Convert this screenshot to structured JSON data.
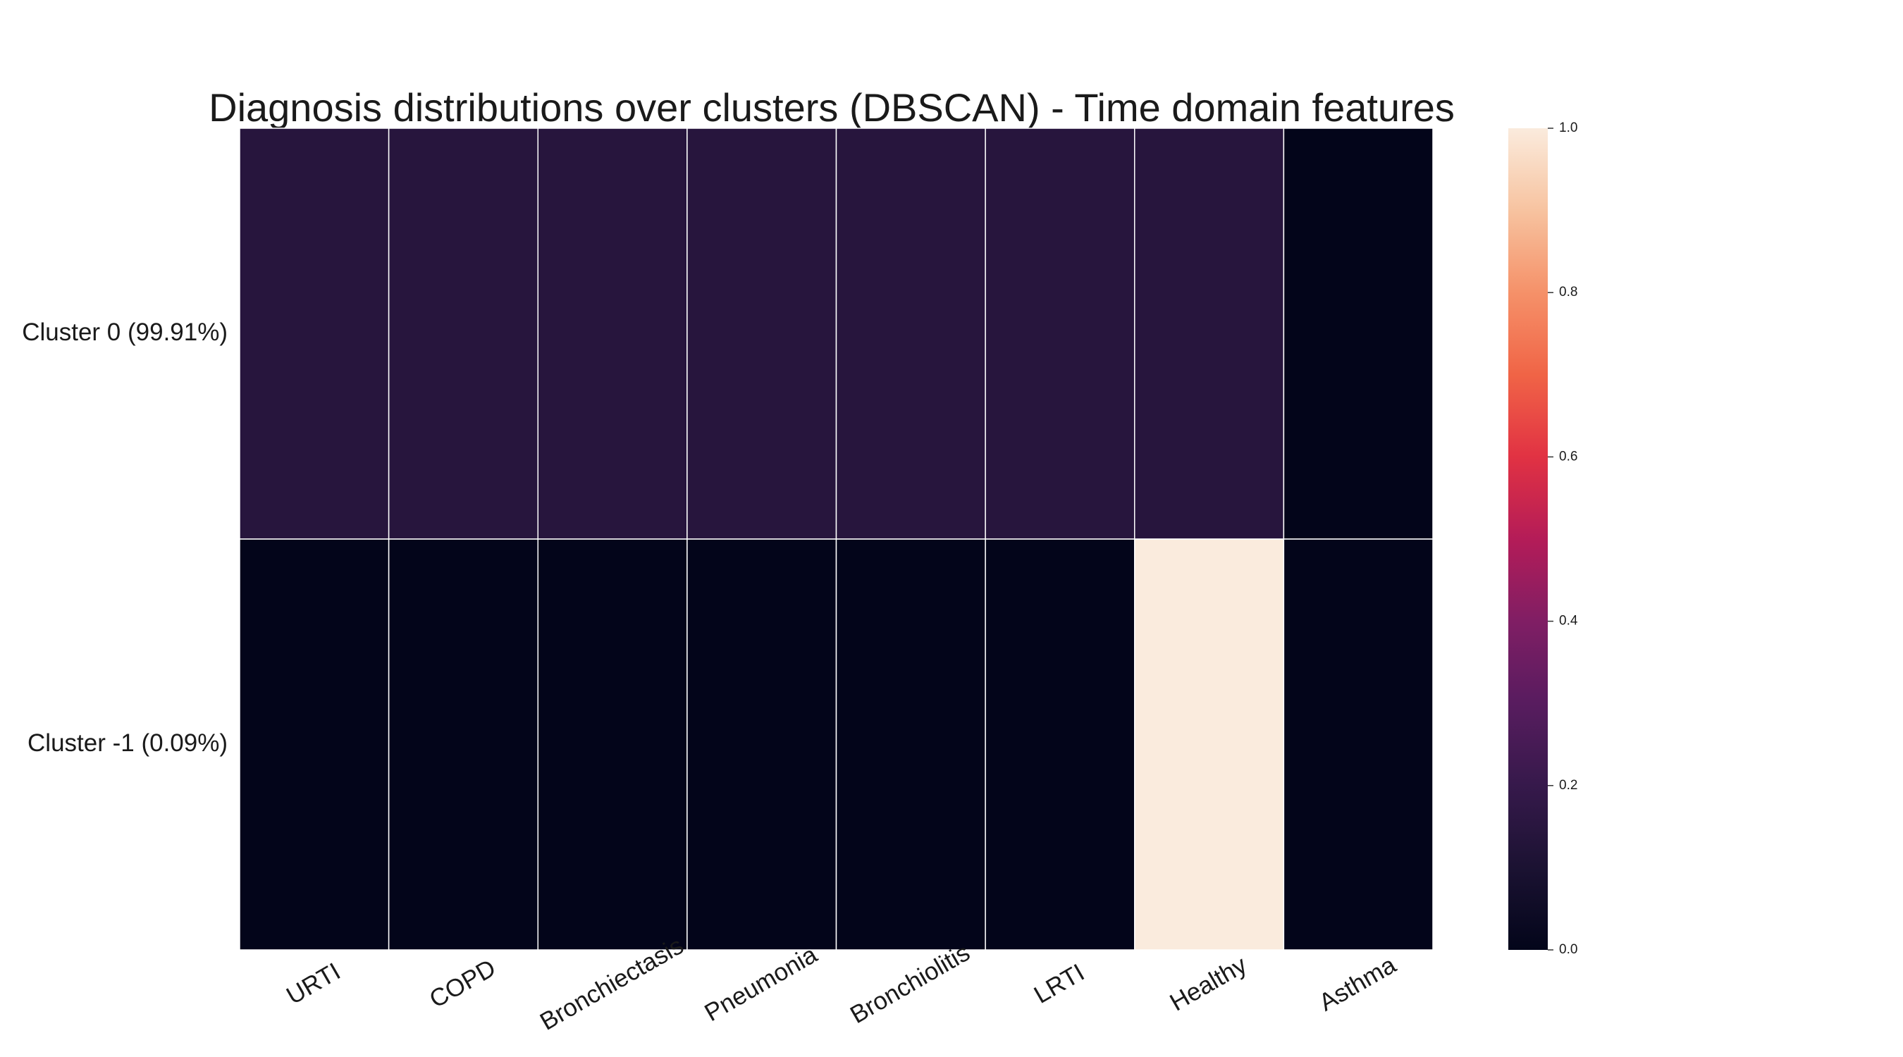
{
  "chart_data": {
    "type": "heatmap",
    "title": "Diagnosis distributions over clusters (DBSCAN) - Time domain features",
    "xlabel": "",
    "ylabel": "",
    "columns": [
      "URTI",
      "COPD",
      "Bronchiectasis",
      "Pneumonia",
      "Bronchiolitis",
      "LRTI",
      "Healthy",
      "Asthma"
    ],
    "rows": [
      "Cluster 0 (99.91%)",
      "Cluster -1 (0.09%)"
    ],
    "values": [
      [
        0.143,
        0.143,
        0.143,
        0.143,
        0.143,
        0.143,
        0.143,
        0.0
      ],
      [
        0.0,
        0.0,
        0.0,
        0.0,
        0.0,
        0.0,
        1.0,
        0.0
      ]
    ],
    "colorbar": {
      "colormap": "rocket",
      "range": [
        0.0,
        1.0
      ],
      "ticks": [
        "0.0",
        "0.2",
        "0.4",
        "0.6",
        "0.8",
        "1.0"
      ]
    },
    "grid": true,
    "colors": {
      "low": "#03051a",
      "high": "#faebdd",
      "cell_border": "#ffffff"
    }
  }
}
